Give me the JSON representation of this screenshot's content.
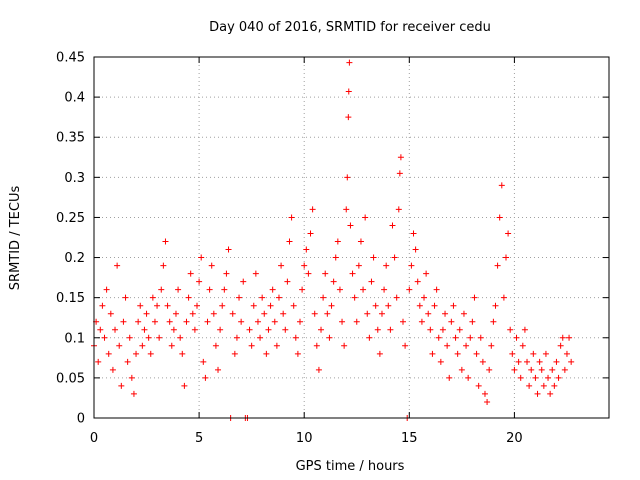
{
  "chart_data": {
    "type": "scatter",
    "title": "Day 040 of 2016, SRMTID for receiver cedu",
    "xlabel": "GPS time / hours",
    "ylabel": "SRMTID / TECUs",
    "xlim": [
      0,
      24.5
    ],
    "ylim": [
      0,
      0.45
    ],
    "x_ticks": [
      0,
      5,
      10,
      15,
      20
    ],
    "x_tick_labels": [
      "0",
      "5",
      "10",
      "15",
      "20"
    ],
    "y_ticks": [
      0,
      0.05,
      0.1,
      0.15,
      0.2,
      0.25,
      0.3,
      0.35,
      0.4,
      0.45
    ],
    "y_tick_labels": [
      "0",
      "0.05",
      "0.1",
      "0.15",
      "0.2",
      "0.25",
      "0.3",
      "0.35",
      "0.4",
      "0.45"
    ],
    "grid": true,
    "marker": "plus",
    "color": "#ff0000",
    "series": [
      {
        "name": "SRMTID",
        "points": [
          [
            0.0,
            0.09
          ],
          [
            0.1,
            0.12
          ],
          [
            0.2,
            0.07
          ],
          [
            0.3,
            0.11
          ],
          [
            0.4,
            0.14
          ],
          [
            0.5,
            0.1
          ],
          [
            0.6,
            0.16
          ],
          [
            0.7,
            0.08
          ],
          [
            0.8,
            0.13
          ],
          [
            0.9,
            0.06
          ],
          [
            1.0,
            0.11
          ],
          [
            1.1,
            0.19
          ],
          [
            1.2,
            0.09
          ],
          [
            1.3,
            0.04
          ],
          [
            1.4,
            0.12
          ],
          [
            1.5,
            0.15
          ],
          [
            1.6,
            0.07
          ],
          [
            1.7,
            0.1
          ],
          [
            1.8,
            0.05
          ],
          [
            1.9,
            0.03
          ],
          [
            2.0,
            0.08
          ],
          [
            2.1,
            0.12
          ],
          [
            2.2,
            0.14
          ],
          [
            2.3,
            0.09
          ],
          [
            2.4,
            0.11
          ],
          [
            2.5,
            0.13
          ],
          [
            2.6,
            0.1
          ],
          [
            2.7,
            0.08
          ],
          [
            2.8,
            0.15
          ],
          [
            2.9,
            0.12
          ],
          [
            3.0,
            0.14
          ],
          [
            3.1,
            0.1
          ],
          [
            3.2,
            0.16
          ],
          [
            3.3,
            0.19
          ],
          [
            3.4,
            0.22
          ],
          [
            3.5,
            0.14
          ],
          [
            3.6,
            0.12
          ],
          [
            3.7,
            0.09
          ],
          [
            3.8,
            0.11
          ],
          [
            3.9,
            0.13
          ],
          [
            4.0,
            0.16
          ],
          [
            4.1,
            0.1
          ],
          [
            4.2,
            0.08
          ],
          [
            4.3,
            0.04
          ],
          [
            4.4,
            0.12
          ],
          [
            4.5,
            0.15
          ],
          [
            4.6,
            0.18
          ],
          [
            4.7,
            0.13
          ],
          [
            4.8,
            0.11
          ],
          [
            4.9,
            0.14
          ],
          [
            5.0,
            0.17
          ],
          [
            5.1,
            0.2
          ],
          [
            5.2,
            0.07
          ],
          [
            5.3,
            0.05
          ],
          [
            5.4,
            0.12
          ],
          [
            5.5,
            0.16
          ],
          [
            5.6,
            0.19
          ],
          [
            5.7,
            0.13
          ],
          [
            5.8,
            0.09
          ],
          [
            5.9,
            0.06
          ],
          [
            6.0,
            0.11
          ],
          [
            6.1,
            0.14
          ],
          [
            6.2,
            0.16
          ],
          [
            6.3,
            0.18
          ],
          [
            6.4,
            0.21
          ],
          [
            6.5,
            0.0
          ],
          [
            6.6,
            0.13
          ],
          [
            6.7,
            0.08
          ],
          [
            6.8,
            0.1
          ],
          [
            6.9,
            0.15
          ],
          [
            7.0,
            0.12
          ],
          [
            7.1,
            0.17
          ],
          [
            7.2,
            0.0
          ],
          [
            7.3,
            0.0
          ],
          [
            7.4,
            0.11
          ],
          [
            7.5,
            0.09
          ],
          [
            7.6,
            0.14
          ],
          [
            7.7,
            0.18
          ],
          [
            7.8,
            0.12
          ],
          [
            7.9,
            0.1
          ],
          [
            8.0,
            0.15
          ],
          [
            8.1,
            0.13
          ],
          [
            8.2,
            0.08
          ],
          [
            8.3,
            0.11
          ],
          [
            8.4,
            0.14
          ],
          [
            8.5,
            0.16
          ],
          [
            8.6,
            0.12
          ],
          [
            8.7,
            0.09
          ],
          [
            8.8,
            0.15
          ],
          [
            8.9,
            0.19
          ],
          [
            9.0,
            0.13
          ],
          [
            9.1,
            0.11
          ],
          [
            9.2,
            0.17
          ],
          [
            9.3,
            0.22
          ],
          [
            9.4,
            0.25
          ],
          [
            9.5,
            0.14
          ],
          [
            9.6,
            0.1
          ],
          [
            9.7,
            0.08
          ],
          [
            9.8,
            0.12
          ],
          [
            9.9,
            0.16
          ],
          [
            10.0,
            0.19
          ],
          [
            10.1,
            0.21
          ],
          [
            10.2,
            0.18
          ],
          [
            10.3,
            0.23
          ],
          [
            10.4,
            0.26
          ],
          [
            10.5,
            0.13
          ],
          [
            10.6,
            0.09
          ],
          [
            10.7,
            0.06
          ],
          [
            10.8,
            0.11
          ],
          [
            10.9,
            0.15
          ],
          [
            11.0,
            0.18
          ],
          [
            11.1,
            0.13
          ],
          [
            11.2,
            0.1
          ],
          [
            11.3,
            0.14
          ],
          [
            11.4,
            0.17
          ],
          [
            11.5,
            0.2
          ],
          [
            11.6,
            0.22
          ],
          [
            11.7,
            0.16
          ],
          [
            11.8,
            0.12
          ],
          [
            11.9,
            0.09
          ],
          [
            12.0,
            0.26
          ],
          [
            12.05,
            0.3
          ],
          [
            12.1,
            0.375
          ],
          [
            12.12,
            0.407
          ],
          [
            12.15,
            0.443
          ],
          [
            12.2,
            0.24
          ],
          [
            12.3,
            0.18
          ],
          [
            12.4,
            0.15
          ],
          [
            12.5,
            0.12
          ],
          [
            12.6,
            0.19
          ],
          [
            12.7,
            0.22
          ],
          [
            12.8,
            0.16
          ],
          [
            12.9,
            0.25
          ],
          [
            13.0,
            0.13
          ],
          [
            13.1,
            0.1
          ],
          [
            13.2,
            0.17
          ],
          [
            13.3,
            0.2
          ],
          [
            13.4,
            0.14
          ],
          [
            13.5,
            0.11
          ],
          [
            13.6,
            0.08
          ],
          [
            13.7,
            0.13
          ],
          [
            13.8,
            0.16
          ],
          [
            13.9,
            0.19
          ],
          [
            14.0,
            0.14
          ],
          [
            14.1,
            0.11
          ],
          [
            14.2,
            0.24
          ],
          [
            14.3,
            0.2
          ],
          [
            14.4,
            0.15
          ],
          [
            14.5,
            0.26
          ],
          [
            14.55,
            0.305
          ],
          [
            14.6,
            0.325
          ],
          [
            14.7,
            0.12
          ],
          [
            14.8,
            0.09
          ],
          [
            14.9,
            0.0
          ],
          [
            15.0,
            0.16
          ],
          [
            15.1,
            0.19
          ],
          [
            15.2,
            0.23
          ],
          [
            15.3,
            0.21
          ],
          [
            15.4,
            0.17
          ],
          [
            15.5,
            0.14
          ],
          [
            15.6,
            0.12
          ],
          [
            15.7,
            0.15
          ],
          [
            15.8,
            0.18
          ],
          [
            15.9,
            0.13
          ],
          [
            16.0,
            0.11
          ],
          [
            16.1,
            0.08
          ],
          [
            16.2,
            0.14
          ],
          [
            16.3,
            0.16
          ],
          [
            16.4,
            0.1
          ],
          [
            16.5,
            0.07
          ],
          [
            16.6,
            0.11
          ],
          [
            16.7,
            0.13
          ],
          [
            16.8,
            0.09
          ],
          [
            16.9,
            0.05
          ],
          [
            17.0,
            0.12
          ],
          [
            17.1,
            0.14
          ],
          [
            17.2,
            0.1
          ],
          [
            17.3,
            0.08
          ],
          [
            17.4,
            0.11
          ],
          [
            17.5,
            0.06
          ],
          [
            17.6,
            0.13
          ],
          [
            17.7,
            0.09
          ],
          [
            17.8,
            0.05
          ],
          [
            17.9,
            0.1
          ],
          [
            18.0,
            0.12
          ],
          [
            18.1,
            0.15
          ],
          [
            18.2,
            0.08
          ],
          [
            18.3,
            0.04
          ],
          [
            18.4,
            0.1
          ],
          [
            18.5,
            0.07
          ],
          [
            18.6,
            0.03
          ],
          [
            18.7,
            0.02
          ],
          [
            18.8,
            0.06
          ],
          [
            18.9,
            0.09
          ],
          [
            19.0,
            0.12
          ],
          [
            19.1,
            0.14
          ],
          [
            19.2,
            0.19
          ],
          [
            19.3,
            0.25
          ],
          [
            19.4,
            0.29
          ],
          [
            19.5,
            0.15
          ],
          [
            19.6,
            0.2
          ],
          [
            19.7,
            0.23
          ],
          [
            19.8,
            0.11
          ],
          [
            19.9,
            0.08
          ],
          [
            20.0,
            0.06
          ],
          [
            20.1,
            0.1
          ],
          [
            20.2,
            0.07
          ],
          [
            20.3,
            0.05
          ],
          [
            20.4,
            0.09
          ],
          [
            20.5,
            0.11
          ],
          [
            20.6,
            0.07
          ],
          [
            20.7,
            0.04
          ],
          [
            20.8,
            0.06
          ],
          [
            20.9,
            0.08
          ],
          [
            21.0,
            0.05
          ],
          [
            21.1,
            0.03
          ],
          [
            21.2,
            0.07
          ],
          [
            21.3,
            0.06
          ],
          [
            21.4,
            0.04
          ],
          [
            21.5,
            0.08
          ],
          [
            21.6,
            0.05
          ],
          [
            21.7,
            0.03
          ],
          [
            21.8,
            0.06
          ],
          [
            21.9,
            0.04
          ],
          [
            22.0,
            0.07
          ],
          [
            22.1,
            0.05
          ],
          [
            22.2,
            0.09
          ],
          [
            22.3,
            0.1
          ],
          [
            22.4,
            0.06
          ],
          [
            22.5,
            0.08
          ],
          [
            22.6,
            0.1
          ],
          [
            22.7,
            0.07
          ]
        ]
      }
    ]
  }
}
